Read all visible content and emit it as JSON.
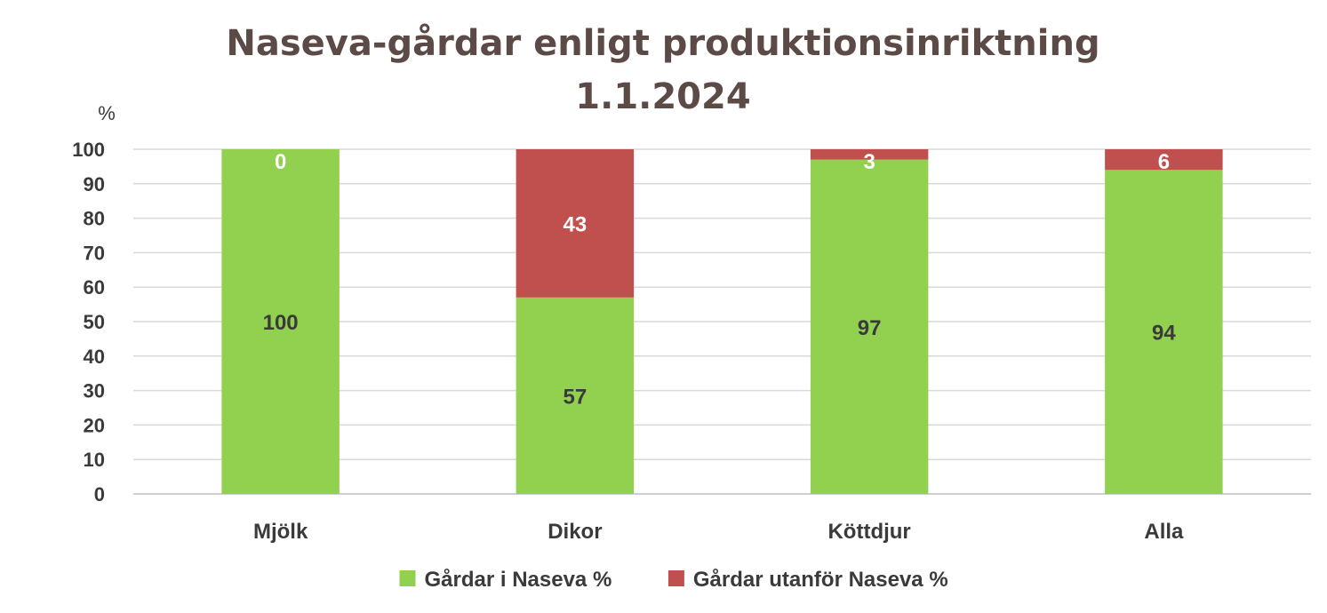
{
  "chart_data": {
    "type": "bar",
    "stacked": true,
    "title_lines": [
      "Naseva-gårdar enligt produktionsinriktning",
      "1.1.2024"
    ],
    "ylabel": "%",
    "xlabel": "",
    "ylim": [
      0,
      100
    ],
    "ytick_step": 10,
    "grid": true,
    "legend_position": "bottom",
    "categories": [
      "Mjölk",
      "Dikor",
      "Köttdjur",
      "Alla"
    ],
    "series": [
      {
        "name": "Gårdar i Naseva %",
        "color": "#92d050",
        "label_color": "#3a3a3a",
        "values": [
          100,
          57,
          97,
          94
        ]
      },
      {
        "name": "Gårdar utanför Naseva %",
        "color": "#c0504d",
        "label_color": "#ffffff",
        "values": [
          0,
          43,
          3,
          6
        ]
      }
    ]
  }
}
